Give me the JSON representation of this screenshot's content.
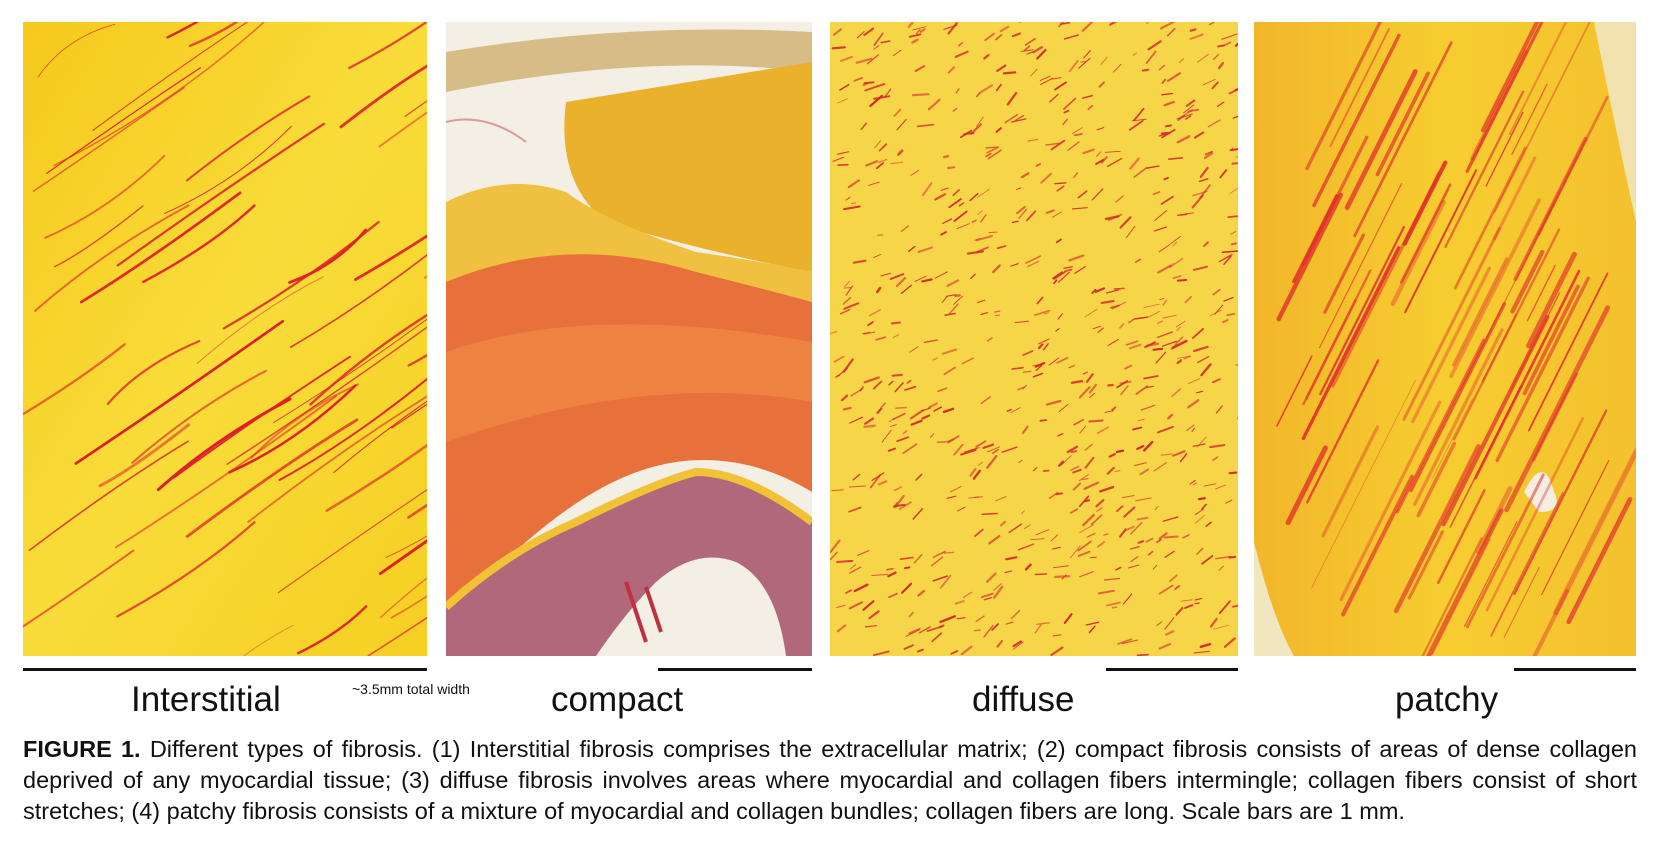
{
  "panels": [
    {
      "label": "Interstitial",
      "tissue_colors": [
        "#f7d21e",
        "#e0202a"
      ]
    },
    {
      "label": "compact",
      "tissue_colors": [
        "#e8a92a",
        "#e96a3a",
        "#a0606e"
      ]
    },
    {
      "label": "diffuse",
      "tissue_colors": [
        "#f7d84a",
        "#d8262c"
      ]
    },
    {
      "label": "patchy",
      "tissue_colors": [
        "#f4c12a",
        "#e0302a"
      ]
    }
  ],
  "scale_note": "~3.5mm total width",
  "caption": {
    "figure_label": "FIGURE 1.",
    "text": "Different types of fibrosis. (1) Interstitial fibrosis comprises the extracellular matrix; (2) compact fibrosis consists of areas of dense collagen deprived of any myocardial tissue; (3) diffuse fibrosis involves areas where myocardial and collagen fibers intermingle; collagen fibers consist of short stretches; (4) patchy fibrosis consists of a mixture of myocardial and collagen bundles; collagen fibers are long. Scale bars are 1 mm."
  }
}
